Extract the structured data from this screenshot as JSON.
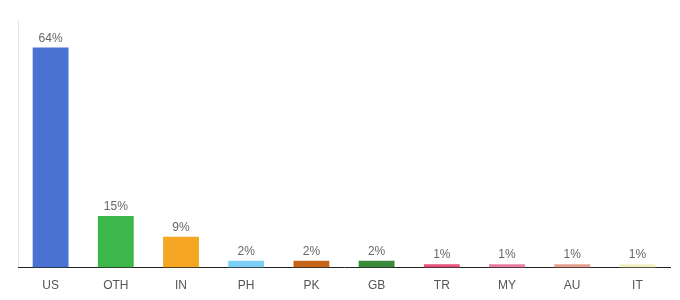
{
  "chart_data": {
    "type": "bar",
    "categories": [
      "US",
      "OTH",
      "IN",
      "PH",
      "PK",
      "GB",
      "TR",
      "MY",
      "AU",
      "IT"
    ],
    "values": [
      64,
      15,
      9,
      2,
      2,
      2,
      1,
      1,
      1,
      1
    ],
    "value_labels": [
      "64%",
      "15%",
      "9%",
      "2%",
      "2%",
      "2%",
      "1%",
      "1%",
      "1%",
      "1%"
    ],
    "colors": [
      "#4a72d1",
      "#3cb84a",
      "#f5a623",
      "#7ecff5",
      "#c4651a",
      "#3a8a3a",
      "#e8527a",
      "#e87fa0",
      "#e8a090",
      "#f0f0c0"
    ],
    "ylim": [
      0,
      72
    ],
    "data_labels": true,
    "tick_labels": "x",
    "grid": false
  }
}
